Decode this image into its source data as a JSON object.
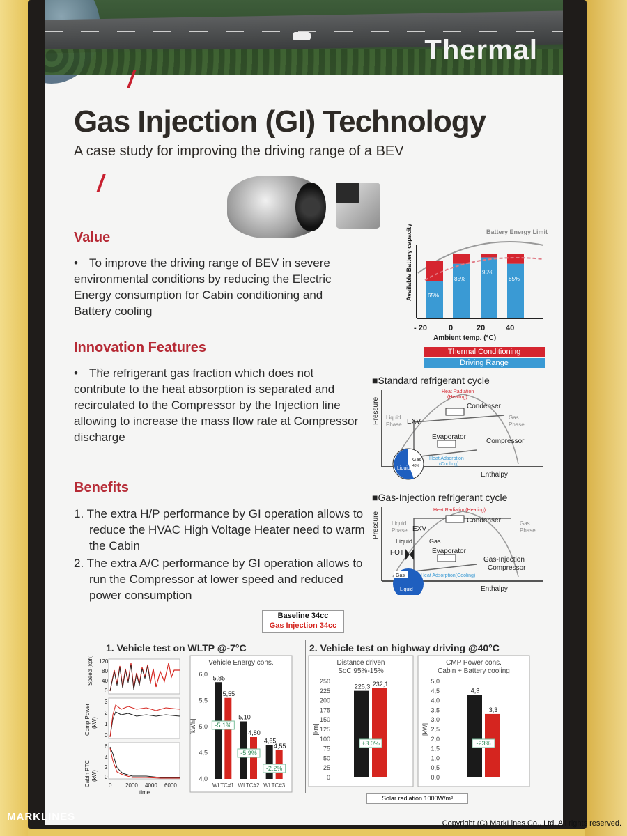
{
  "banner": {
    "label": "Thermal"
  },
  "header": {
    "title": "Gas Injection (GI) Technology",
    "subtitle": "A case study for improving the driving range of a BEV"
  },
  "value": {
    "heading": "Value",
    "text": "To improve the driving range of BEV in severe environmental conditions by reducing the Electric Energy consumption for Cabin conditioning and Battery cooling"
  },
  "innovation": {
    "heading": "Innovation Features",
    "text": "The refrigerant gas fraction which does not contribute to the heat absorption is separated and recirculated to the Compressor by the Injection line allowing to increase the mass flow rate at Compressor discharge"
  },
  "benefits": {
    "heading": "Benefits",
    "items": [
      "1.  The extra H/P performance by GI operation allows to reduce the HVAC High Voltage Heater need to warm the Cabin",
      "2.  The extra A/C performance by GI operation allows to run the Compressor at lower speed and reduced power consumption"
    ]
  },
  "legend_box": {
    "baseline": "Baseline 34cc",
    "gi": "Gas Injection 34cc",
    "baseline_color": "#1a1a1a",
    "gi_color": "#d5251f"
  },
  "range_chart": {
    "limit_label": "Battery Energy Limit",
    "ylabel": "Available Battery capacity",
    "xlabel": "Ambient temp. (°C)",
    "ticks": [
      "- 20",
      "0",
      "20",
      "40"
    ],
    "pct": [
      "65%",
      "85%",
      "95%",
      "85%"
    ],
    "legend_thermal": "Thermal Conditioning",
    "legend_range": "Driving Range",
    "thermal_color": "#d5252f",
    "range_color": "#3a9ad4"
  },
  "standard_cycle": {
    "title": "■Standard refrigerant cycle",
    "heat_radiation": "Heat Radiation",
    "heating": "(Heating)",
    "condenser": "Condenser",
    "liquid_phase": [
      "Liquid",
      "Phase"
    ],
    "gas_phase": [
      "Gas",
      "Phase"
    ],
    "exv": "EXV",
    "evaporator": "Evaporator",
    "compressor": "Compressor",
    "heat_adsorption": "Heat Adsorption",
    "cooling": "(Cooling)",
    "liquid": "Liquid",
    "gas": "Gas",
    "gas_pct": "40%",
    "pressure": "Pressure",
    "enthalpy": "Enthalpy"
  },
  "gi_cycle": {
    "title": "■Gas-Injection refrigerant cycle",
    "heat_radiation": "Heat Radiation(Heating)",
    "condenser": "Condenser",
    "liquid_phase": [
      "Liquid",
      "Phase"
    ],
    "gas_phase": [
      "Gas",
      "Phase"
    ],
    "exv": "EXV",
    "liquid_gas": [
      "Liquid",
      "Gas"
    ],
    "fot": "FOT",
    "evaporator": "Evaporator",
    "compressor": [
      "Gas-Injection",
      "Compressor"
    ],
    "heat_adsorption": "Heat Adsorption(Cooling)",
    "gas": "Gas",
    "liquid": "Liquid",
    "pressure": "Pressure",
    "enthalpy": "Enthalpy"
  },
  "tests": {
    "test1_title": "1.  Vehicle test on WLTP @-7°C",
    "test2_title": "2.  Vehicle test on highway driving @40°C",
    "speed_label": [
      "Speed (kph)"
    ],
    "comp_label": [
      "Comp Power",
      "(kW)"
    ],
    "ptc_label": [
      "Cabin PTC",
      "(kW)"
    ],
    "time_label": "time",
    "speed_ticks": [
      "120",
      "80",
      "40",
      "0"
    ],
    "comp_ticks": [
      "3",
      "2",
      "1",
      "0"
    ],
    "ptc_ticks": [
      "6",
      "4",
      "2",
      "0"
    ],
    "time_ticks": [
      "0",
      "2000",
      "4000",
      "6000"
    ],
    "solar": "Solar radiation 1000W/m²"
  },
  "chart_data": [
    {
      "type": "bar",
      "title": "Vehicle Energy cons.",
      "ylabel": "[kWh]",
      "categories": [
        "WLTC#1",
        "WLTC#2",
        "WLTC#3"
      ],
      "series": [
        {
          "name": "Baseline 34cc",
          "values": [
            5.85,
            5.1,
            4.65
          ]
        },
        {
          "name": "Gas Injection 34cc",
          "values": [
            5.55,
            4.8,
            4.55
          ]
        }
      ],
      "value_labels": [
        [
          "5,85",
          "5,10",
          "4,65"
        ],
        [
          "5,55",
          "4,80",
          "4,55"
        ]
      ],
      "annotations": [
        "-5.1%",
        "-5.9%",
        "-2.2%"
      ],
      "ylim": [
        4.0,
        6.0
      ],
      "yticks": [
        "6,0",
        "5,5",
        "5,0",
        "4,5",
        "4,0"
      ]
    },
    {
      "type": "bar",
      "title": "Distance driven",
      "subtitle": "SoC 95%-15%",
      "ylabel": "[km]",
      "categories": [
        ""
      ],
      "series": [
        {
          "name": "Baseline 34cc",
          "values": [
            225.3
          ]
        },
        {
          "name": "Gas Injection 34cc",
          "values": [
            232.1
          ]
        }
      ],
      "value_labels": [
        "225,3",
        "232,1"
      ],
      "annotations": [
        "+3.0%"
      ],
      "ylim": [
        0,
        250
      ],
      "yticks": [
        "250",
        "225",
        "200",
        "175",
        "150",
        "125",
        "100",
        "75",
        "50",
        "25",
        "0"
      ]
    },
    {
      "type": "bar",
      "title": "CMP Power cons.",
      "subtitle": "Cabin + Battery cooling",
      "ylabel": "[kW]",
      "categories": [
        ""
      ],
      "series": [
        {
          "name": "Baseline 34cc",
          "values": [
            4.3
          ]
        },
        {
          "name": "Gas Injection 34cc",
          "values": [
            3.3
          ]
        }
      ],
      "value_labels": [
        "4,3",
        "3,3"
      ],
      "annotations": [
        "-23%"
      ],
      "ylim": [
        0,
        5
      ],
      "yticks": [
        "5,0",
        "4,5",
        "4,0",
        "3,5",
        "3,0",
        "2,5",
        "2,0",
        "1,5",
        "1,0",
        "0,5",
        "0,0"
      ]
    },
    {
      "type": "bar",
      "title": "",
      "xlabel": "Ambient temp. (°C)",
      "ylabel": "Available Battery capacity",
      "categories": [
        "- 20",
        "0",
        "20",
        "40"
      ],
      "series": [
        {
          "name": "Driving Range",
          "values": [
            65,
            85,
            95,
            85
          ]
        }
      ],
      "value_labels": [
        "65%",
        "85%",
        "95%",
        "85%"
      ],
      "annotations": [
        "Battery Energy Limit"
      ]
    }
  ],
  "footer": {
    "brand": "MARKLINES",
    "copyright": "Copyright (C) MarkLines Co., Ltd. All rights reserved."
  }
}
